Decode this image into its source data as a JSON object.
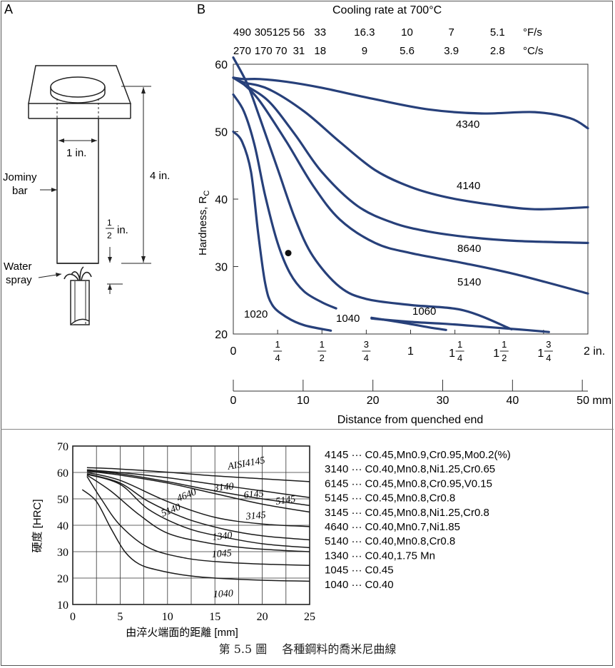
{
  "colors": {
    "curve_blue": "#27407a",
    "ink": "#111111"
  },
  "panel_a": {
    "label": "A",
    "dim_width": "1 in.",
    "dim_length": "4 in.",
    "dim_half_num": "1",
    "dim_half_den": "2",
    "dim_half_unit": "in.",
    "bar_label_1": "Jominy",
    "bar_label_2": "bar",
    "spray_label_1": "Water",
    "spray_label_2": "spray"
  },
  "chart_data": [
    {
      "type": "line",
      "panel": "B",
      "title": "Cooling rate at 700°C",
      "top_scale_fs": {
        "unit": "°F/s",
        "labels": [
          "490",
          "305",
          "125",
          "56",
          "33",
          "16.3",
          "10",
          "7",
          "5.1"
        ]
      },
      "top_scale_cs": {
        "unit": "°C/s",
        "labels": [
          "270",
          "170",
          "70",
          "31",
          "18",
          "9",
          "5.6",
          "3.9",
          "2.8"
        ]
      },
      "ylabel": "Hardness, R",
      "ylabel_sub": "C",
      "ylim": [
        20,
        60
      ],
      "yticks": [
        "20",
        "30",
        "40",
        "50",
        "60"
      ],
      "xlabel": "Distance from quenched end",
      "xlim_in": [
        0,
        2
      ],
      "xticks_in": [
        {
          "w": "0"
        },
        {
          "n": "1",
          "d": "4"
        },
        {
          "n": "1",
          "d": "2"
        },
        {
          "n": "3",
          "d": "4"
        },
        {
          "w": "1"
        },
        {
          "w": "1",
          "n": "1",
          "d": "4"
        },
        {
          "w": "1",
          "n": "1",
          "d": "2"
        },
        {
          "w": "1",
          "n": "3",
          "d": "4"
        },
        {
          "w": "2 in."
        }
      ],
      "xticks_mm": [
        "0",
        "10",
        "20",
        "30",
        "40",
        "50 mm"
      ],
      "marker": {
        "x": 0.31,
        "y": 32
      },
      "series": [
        {
          "name": "4340",
          "x": [
            0.0,
            0.06,
            0.15,
            0.3,
            0.5,
            0.8,
            1.1,
            1.4,
            1.7,
            1.9,
            2.0
          ],
          "y": [
            58,
            57.8,
            57.8,
            57.4,
            56.5,
            54.8,
            53.3,
            52.7,
            52.9,
            52,
            50.5
          ]
        },
        {
          "name": "4140",
          "x": [
            0.0,
            0.06,
            0.2,
            0.4,
            0.6,
            0.8,
            1.0,
            1.2,
            1.45,
            1.7,
            2.0
          ],
          "y": [
            58,
            57.3,
            56.3,
            53,
            48.5,
            44.3,
            41.8,
            40.3,
            39.2,
            38.5,
            38.8
          ]
        },
        {
          "name": "8640",
          "x": [
            0.0,
            0.06,
            0.2,
            0.35,
            0.5,
            0.7,
            0.9,
            1.1,
            1.35,
            1.6,
            2.0
          ],
          "y": [
            58,
            57,
            54.5,
            49.5,
            44,
            39,
            36.5,
            35.2,
            34.3,
            33.8,
            33.5
          ]
        },
        {
          "name": "5140",
          "x": [
            0.0,
            0.06,
            0.15,
            0.3,
            0.45,
            0.6,
            0.8,
            1.0,
            1.3,
            1.6,
            2.0
          ],
          "y": [
            58,
            57,
            54.5,
            48.5,
            42,
            37,
            33.5,
            32,
            30.5,
            28.8,
            26
          ]
        },
        {
          "name": "1060",
          "x": [
            0.0,
            0.08,
            0.15,
            0.25,
            0.35,
            0.45,
            0.6,
            0.75,
            1.0,
            1.3,
            1.57
          ],
          "y": [
            61,
            57,
            52,
            44.5,
            37,
            31.5,
            27,
            25.2,
            24.3,
            23.5,
            20.7
          ]
        },
        {
          "name": "1040",
          "x": [
            0.0,
            0.06,
            0.12,
            0.18,
            0.25,
            0.32,
            0.4,
            0.5,
            0.58
          ],
          "y": [
            55.5,
            53,
            48,
            40.5,
            33.5,
            29,
            26.3,
            24.7,
            23.8
          ]
        },
        {
          "name": "1020",
          "x": [
            0.0,
            0.05,
            0.1,
            0.14,
            0.18,
            0.22,
            0.3,
            0.4,
            0.55
          ],
          "y": [
            50,
            48.5,
            44,
            35,
            27.5,
            24.3,
            22.5,
            21.3,
            20.5
          ]
        },
        {
          "name": "",
          "x": [
            0.78,
            1.0,
            1.2,
            1.4,
            1.6,
            1.78
          ],
          "y": [
            22.3,
            21.8,
            21.5,
            21.1,
            20.7,
            20.3
          ]
        },
        {
          "name": "",
          "x": [
            0.78,
            0.95,
            1.1,
            1.2
          ],
          "y": [
            22.4,
            21.7,
            21,
            20.6
          ]
        }
      ],
      "label_texts": [
        "4340",
        "4140",
        "8640",
        "5140",
        "1060",
        "1040",
        "1020"
      ]
    },
    {
      "type": "line",
      "panel": "bottom",
      "ylabel": "硬度 [HRC]",
      "xlabel": "由淬火端面的距離 [mm]",
      "ylim": [
        10,
        70
      ],
      "xlim": [
        0,
        25
      ],
      "yticks": [
        "10",
        "20",
        "30",
        "40",
        "50",
        "60",
        "70"
      ],
      "xticks": [
        "0",
        "5",
        "10",
        "15",
        "20",
        "25"
      ],
      "series": [
        {
          "name": "4145",
          "x": [
            1.5,
            5,
            10,
            15,
            20,
            25
          ],
          "y": [
            61.8,
            61.3,
            60.1,
            58.7,
            57.6,
            56.5
          ]
        },
        {
          "name": "3140",
          "x": [
            1.5,
            5,
            10,
            15,
            20,
            25
          ],
          "y": [
            60.8,
            59.5,
            56.5,
            53,
            50,
            47.5
          ]
        },
        {
          "name": "6145",
          "x": [
            1.5,
            5,
            10,
            15,
            20,
            25
          ],
          "y": [
            61,
            60,
            58,
            55.5,
            53,
            50.5
          ]
        },
        {
          "name": "5145",
          "x": [
            1.5,
            5,
            10,
            15,
            20,
            25
          ],
          "y": [
            60.5,
            59,
            56,
            52,
            48,
            45
          ]
        },
        {
          "name": "3145",
          "x": [
            1.5,
            5,
            10,
            15,
            20,
            25
          ],
          "y": [
            60,
            57,
            49,
            43,
            40.5,
            39.5
          ]
        },
        {
          "name": "4640",
          "x": [
            1.5,
            5,
            8,
            12,
            16,
            20,
            25
          ],
          "y": [
            59.5,
            56,
            49,
            42.5,
            38.5,
            36,
            34.5
          ]
        },
        {
          "name": "5140",
          "x": [
            1.5,
            5,
            8,
            12,
            16,
            20,
            25
          ],
          "y": [
            59.3,
            55.5,
            46,
            39,
            35.5,
            33,
            31.5
          ]
        },
        {
          "name": "1340",
          "x": [
            1.5,
            4,
            7,
            10,
            14,
            18,
            22,
            25
          ],
          "y": [
            59,
            53,
            44,
            37,
            33.5,
            31.5,
            30.5,
            30
          ]
        },
        {
          "name": "1045",
          "x": [
            1.5,
            3,
            5,
            8,
            12,
            16,
            20,
            25
          ],
          "y": [
            58.5,
            50,
            40,
            31.5,
            27.5,
            26,
            25.3,
            24.8
          ]
        },
        {
          "name": "1040",
          "x": [
            1,
            2.5,
            4,
            5.5,
            7,
            9,
            12,
            15,
            20,
            25
          ],
          "y": [
            53.5,
            49,
            39,
            30,
            25.3,
            23,
            21,
            20,
            19.2,
            18.8
          ]
        }
      ],
      "curve_labels": [
        "AISI4145",
        "3140",
        "6145",
        "5145",
        "3145",
        "4640",
        "5140",
        "1340",
        "1045",
        "1040"
      ]
    }
  ],
  "legend_bottom": [
    {
      "code": "4145",
      "comp": "C0.45,Mn0.9,Cr0.95,Mo0.2(%)"
    },
    {
      "code": "3140",
      "comp": "C0.40,Mn0.8,Ni1.25,Cr0.65"
    },
    {
      "code": "6145",
      "comp": "C0.45,Mn0.8,Cr0.95,V0.15"
    },
    {
      "code": "5145",
      "comp": "C0.45,Mn0.8,Cr0.8"
    },
    {
      "code": "3145",
      "comp": "C0.45,Mn0.8,Ni1.25,Cr0.8"
    },
    {
      "code": "4640",
      "comp": "C0.40,Mn0.7,Ni1.85"
    },
    {
      "code": "5140",
      "comp": "C0.40,Mn0.8,Cr0.8"
    },
    {
      "code": "1340",
      "comp": "C0.40,1.75 Mn"
    },
    {
      "code": "1045",
      "comp": "C0.45"
    },
    {
      "code": "1040",
      "comp": "C0.40"
    }
  ],
  "legend_sep": "···",
  "caption": "第 5.5 圖　 各種鋼料的喬米尼曲線"
}
